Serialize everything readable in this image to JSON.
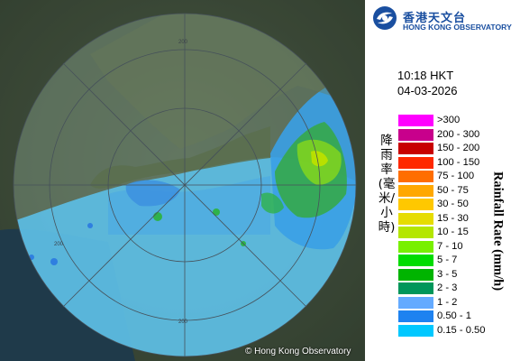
{
  "organization": {
    "name_cn": "香港天文台",
    "name_en": "HONG KONG OBSERVATORY"
  },
  "timestamp": {
    "time": "10:18 HKT",
    "date": "04-03-2026"
  },
  "legend": {
    "title_cn": "降雨率(毫米/小時)",
    "title_en": "Rainfall Rate (mm/h)",
    "items": [
      {
        "label": ">300",
        "color": "#ff00ff"
      },
      {
        "label": "200 - 300",
        "color": "#c8008c"
      },
      {
        "label": "150 - 200",
        "color": "#c80000"
      },
      {
        "label": "100 - 150",
        "color": "#ff2800"
      },
      {
        "label": "75 - 100",
        "color": "#ff6e00"
      },
      {
        "label": "50 - 75",
        "color": "#ffa800"
      },
      {
        "label": "30 - 50",
        "color": "#ffc800"
      },
      {
        "label": "15 - 30",
        "color": "#e6dc00"
      },
      {
        "label": "10 - 15",
        "color": "#b4e600"
      },
      {
        "label": "7 - 10",
        "color": "#78f000"
      },
      {
        "label": "5 - 7",
        "color": "#00dc00"
      },
      {
        "label": "3 - 5",
        "color": "#00b400"
      },
      {
        "label": "2 - 3",
        "color": "#00965a"
      },
      {
        "label": "1 - 2",
        "color": "#64aaff"
      },
      {
        "label": "0.50 - 1",
        "color": "#1e82f0"
      },
      {
        "label": "0.15 - 0.50",
        "color": "#00c8ff"
      }
    ]
  },
  "map": {
    "range_labels": [
      "200",
      "200",
      "200"
    ],
    "copyright": "© Hong Kong Observatory"
  }
}
